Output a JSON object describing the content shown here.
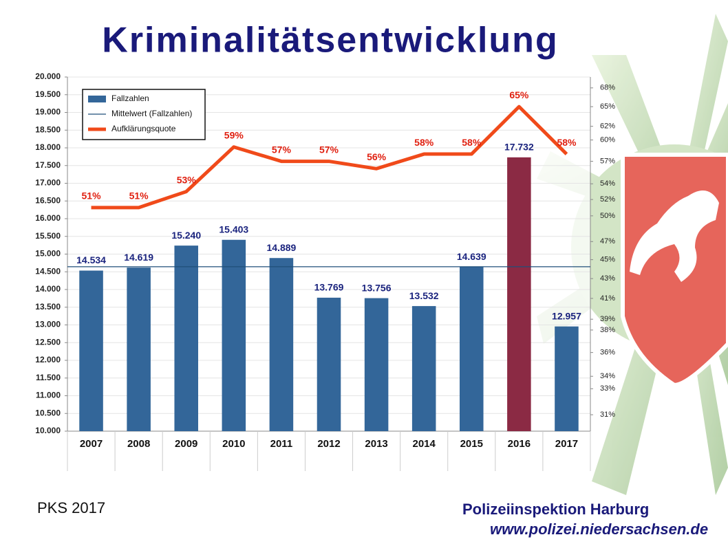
{
  "chart_data": {
    "type": "bar",
    "title": "Kriminalitätsentwicklung",
    "categories": [
      "2007",
      "2008",
      "2009",
      "2010",
      "2011",
      "2012",
      "2013",
      "2014",
      "2015",
      "2016",
      "2017"
    ],
    "series": [
      {
        "name": "Fallzahlen",
        "type": "bar",
        "color": "#336699",
        "colors": [
          "#336699",
          "#336699",
          "#336699",
          "#336699",
          "#336699",
          "#336699",
          "#336699",
          "#336699",
          "#336699",
          "#8b2a44",
          "#336699"
        ],
        "values": [
          14534,
          14619,
          15240,
          15403,
          14889,
          13769,
          13756,
          13532,
          14639,
          17732,
          12957
        ],
        "value_labels": [
          "14.534",
          "14.619",
          "15.240",
          "15.403",
          "14.889",
          "13.769",
          "13.756",
          "13.532",
          "14.639",
          "17.732",
          "12.957"
        ]
      },
      {
        "name": "Aufklärungsquote",
        "type": "line",
        "axis": "y2",
        "color": "#f04a1a",
        "values": [
          51,
          51,
          53,
          59,
          57,
          57,
          56,
          58,
          58,
          65,
          58
        ],
        "value_labels": [
          "51%",
          "51%",
          "53%",
          "59%",
          "57%",
          "57%",
          "56%",
          "58%",
          "58%",
          "65%",
          "58%"
        ]
      }
    ],
    "mean_line": {
      "name": "Mittelwert (Fallzahlen)",
      "value": 14643,
      "color": "#1f4e79"
    },
    "ylim": [
      10000,
      20000
    ],
    "yticks": [
      {
        "value": 10000,
        "label": "10.000"
      },
      {
        "value": 10500,
        "label": "10.500"
      },
      {
        "value": 11000,
        "label": "11.000"
      },
      {
        "value": 11500,
        "label": "11.500"
      },
      {
        "value": 12000,
        "label": "12.000"
      },
      {
        "value": 12500,
        "label": "12.500"
      },
      {
        "value": 13000,
        "label": "13.000"
      },
      {
        "value": 13500,
        "label": "13.500"
      },
      {
        "value": 14000,
        "label": "14.000"
      },
      {
        "value": 14500,
        "label": "14.500"
      },
      {
        "value": 15000,
        "label": "15.000"
      },
      {
        "value": 15500,
        "label": "15.500"
      },
      {
        "value": 16000,
        "label": "16.000"
      },
      {
        "value": 16500,
        "label": "16.500"
      },
      {
        "value": 17000,
        "label": "17.000"
      },
      {
        "value": 17500,
        "label": "17.500"
      },
      {
        "value": 18000,
        "label": "18.000"
      },
      {
        "value": 18500,
        "label": "18.500"
      },
      {
        "value": 19000,
        "label": "19.000"
      },
      {
        "value": 19500,
        "label": "19.500"
      },
      {
        "value": 20000,
        "label": "20.000"
      }
    ],
    "y2lim": [
      29.8,
      69.8
    ],
    "y2_log_scale": true,
    "y2ticks": [
      {
        "value": 31,
        "label": "31%"
      },
      {
        "value": 33,
        "label": "33%"
      },
      {
        "value": 34,
        "label": "34%"
      },
      {
        "value": 36,
        "label": "36%"
      },
      {
        "value": 38,
        "label": "38%"
      },
      {
        "value": 39,
        "label": "39%"
      },
      {
        "value": 41,
        "label": "41%"
      },
      {
        "value": 43,
        "label": "43%"
      },
      {
        "value": 45,
        "label": "45%"
      },
      {
        "value": 47,
        "label": "47%"
      },
      {
        "value": 50,
        "label": "50%"
      },
      {
        "value": 52,
        "label": "52%"
      },
      {
        "value": 54,
        "label": "54%"
      },
      {
        "value": 57,
        "label": "57%"
      },
      {
        "value": 60,
        "label": "60%"
      },
      {
        "value": 62,
        "label": "62%"
      },
      {
        "value": 65,
        "label": "65%"
      },
      {
        "value": 68,
        "label": "68%"
      }
    ],
    "legend": "upper left",
    "grid": true
  },
  "footer": {
    "left": "PKS 2017",
    "org": "Polizeiinspektion Harburg",
    "url": "www.polizei.niedersachsen.de"
  }
}
